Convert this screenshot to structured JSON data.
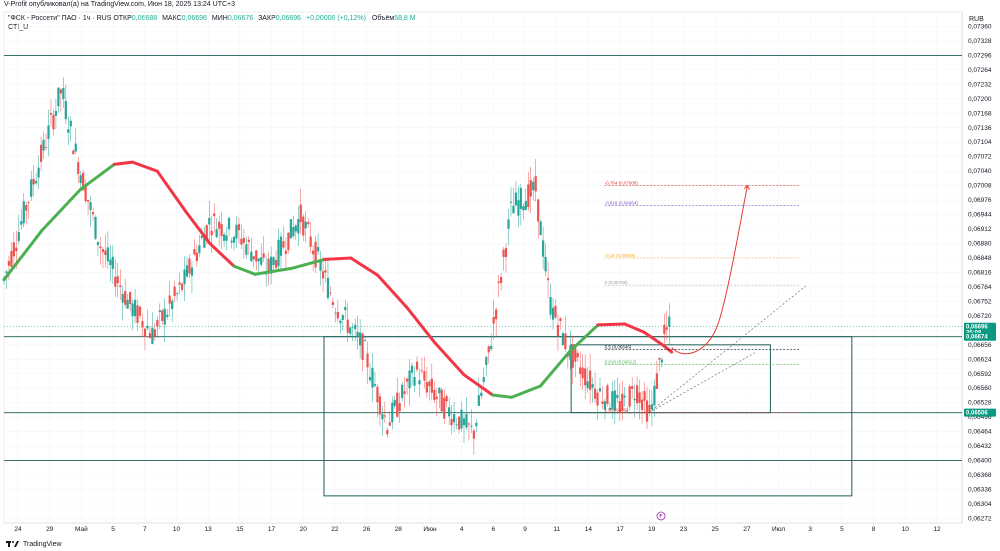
{
  "header": {
    "published_by": "V-Profit опубликовал(а) на TradingView.com, Июн 18, 2025 13:24 UTC+3",
    "symbol": "\"ФСК - Россети\" ПАО · 1ч · RUS",
    "open_label": "ОТКР",
    "open_value": "0,06688",
    "high_label": "МАКС",
    "high_value": "0,06696",
    "low_label": "МИН",
    "low_value": "0,06676",
    "close_label": "ЗАКР",
    "close_value": "0,06696",
    "change": "+0,00008 (+0,12%)",
    "volume_label": "Объём",
    "volume_value": "58,8 M",
    "indicator": "CTI_U",
    "currency": "RUB"
  },
  "footer": {
    "brand": "TradingView"
  },
  "colors": {
    "up": "#26a69a",
    "down": "#ef5350",
    "cti_bull": "#4caf50",
    "cti_bear": "#f23645",
    "level_line": "#1b5e57",
    "tag_bg": "#089981",
    "projection": "#e53935"
  },
  "chart_data": {
    "type": "candlestick",
    "y_axis": {
      "ylim": [
        0.06262,
        0.07392
      ],
      "ticks": [
        "0,07360",
        "0,07328",
        "0,07296",
        "0,07264",
        "0,07232",
        "0,07200",
        "0,07168",
        "0,07136",
        "0,07104",
        "0,07072",
        "0,07040",
        "0,07008",
        "0,06976",
        "0,06944",
        "0,06912",
        "0,06880",
        "0,06848",
        "0,06816",
        "0,06784",
        "0,06752",
        "0,06720",
        "0,06688",
        "0,06656",
        "0,06624",
        "0,06592",
        "0,06560",
        "0,06528",
        "0,06496",
        "0,06464",
        "0,06432",
        "0,06400",
        "0,06368",
        "0,06336",
        "0,06304",
        "0,06272"
      ]
    },
    "x_axis": {
      "ticks": [
        "24",
        "29",
        "Май",
        "5",
        "7",
        "10",
        "13",
        "15",
        "17",
        "20",
        "22",
        "26",
        "28",
        "Июн",
        "4",
        "6",
        "9",
        "11",
        "14",
        "17",
        "19",
        "23",
        "25",
        "27",
        "Июл",
        "3",
        "5",
        "8",
        "10",
        "12"
      ]
    },
    "price_tags": [
      {
        "label": "0,06696",
        "sub": "35:08",
        "price": 0.06696
      },
      {
        "label": "0,06674",
        "price": 0.06674
      },
      {
        "label": "0,06506",
        "price": 0.06506
      }
    ],
    "horizontal_levels": [
      0.07296,
      0.06674,
      0.06506,
      0.064
    ],
    "rectangles": [
      {
        "from": 0.334,
        "to": 0.885,
        "top": 0.06674,
        "bottom": 0.06322
      },
      {
        "from": 0.592,
        "to": 0.8,
        "top": 0.06656,
        "bottom": 0.06506
      }
    ],
    "fib_levels": [
      {
        "label": "-0,764 (0,07008)",
        "price": 0.07008,
        "color": "#e53935"
      },
      {
        "label": "-0,618 (0,06964)",
        "price": 0.06964,
        "color": "#7e57c2"
      },
      {
        "label": "-0,18 (0,06848)",
        "price": 0.06848,
        "color": "#f9a825"
      },
      {
        "label": "0 (0,06788)",
        "price": 0.06788,
        "color": "#9e9e9e"
      },
      {
        "label": "0,5 (0,06646)",
        "price": 0.06646,
        "color": "#131722"
      },
      {
        "label": "0,618 (0,06612)",
        "price": 0.06612,
        "color": "#4caf50"
      },
      {
        "label": "1 (0,06506)",
        "price": 0.06506,
        "color": "#e53935"
      }
    ],
    "cti_curve": [
      {
        "t": 0.0,
        "y": 0.068,
        "s": "bull"
      },
      {
        "t": 0.04,
        "y": 0.0691,
        "s": "bull"
      },
      {
        "t": 0.08,
        "y": 0.07,
        "s": "bull"
      },
      {
        "t": 0.115,
        "y": 0.07055,
        "s": "bull"
      },
      {
        "t": 0.134,
        "y": 0.0706,
        "s": "bear"
      },
      {
        "t": 0.16,
        "y": 0.0704,
        "s": "bear"
      },
      {
        "t": 0.19,
        "y": 0.0695,
        "s": "bear"
      },
      {
        "t": 0.215,
        "y": 0.0688,
        "s": "bear"
      },
      {
        "t": 0.24,
        "y": 0.0683,
        "s": "bear"
      },
      {
        "t": 0.262,
        "y": 0.06812,
        "s": "bull"
      },
      {
        "t": 0.3,
        "y": 0.06825,
        "s": "bull"
      },
      {
        "t": 0.335,
        "y": 0.06845,
        "s": "bull"
      },
      {
        "t": 0.362,
        "y": 0.06848,
        "s": "bear"
      },
      {
        "t": 0.39,
        "y": 0.0681,
        "s": "bear"
      },
      {
        "t": 0.42,
        "y": 0.0674,
        "s": "bear"
      },
      {
        "t": 0.45,
        "y": 0.0666,
        "s": "bear"
      },
      {
        "t": 0.48,
        "y": 0.0659,
        "s": "bear"
      },
      {
        "t": 0.51,
        "y": 0.06545,
        "s": "bear"
      },
      {
        "t": 0.53,
        "y": 0.0654,
        "s": "bull"
      },
      {
        "t": 0.56,
        "y": 0.06565,
        "s": "bull"
      },
      {
        "t": 0.59,
        "y": 0.0664,
        "s": "bull"
      },
      {
        "t": 0.62,
        "y": 0.067,
        "s": "bull"
      },
      {
        "t": 0.648,
        "y": 0.06702,
        "s": "bear"
      },
      {
        "t": 0.668,
        "y": 0.06684,
        "s": "bear"
      },
      {
        "t": 0.688,
        "y": 0.06655,
        "s": "bear"
      },
      {
        "t": 0.697,
        "y": 0.0664,
        "s": "bear"
      }
    ]
  }
}
